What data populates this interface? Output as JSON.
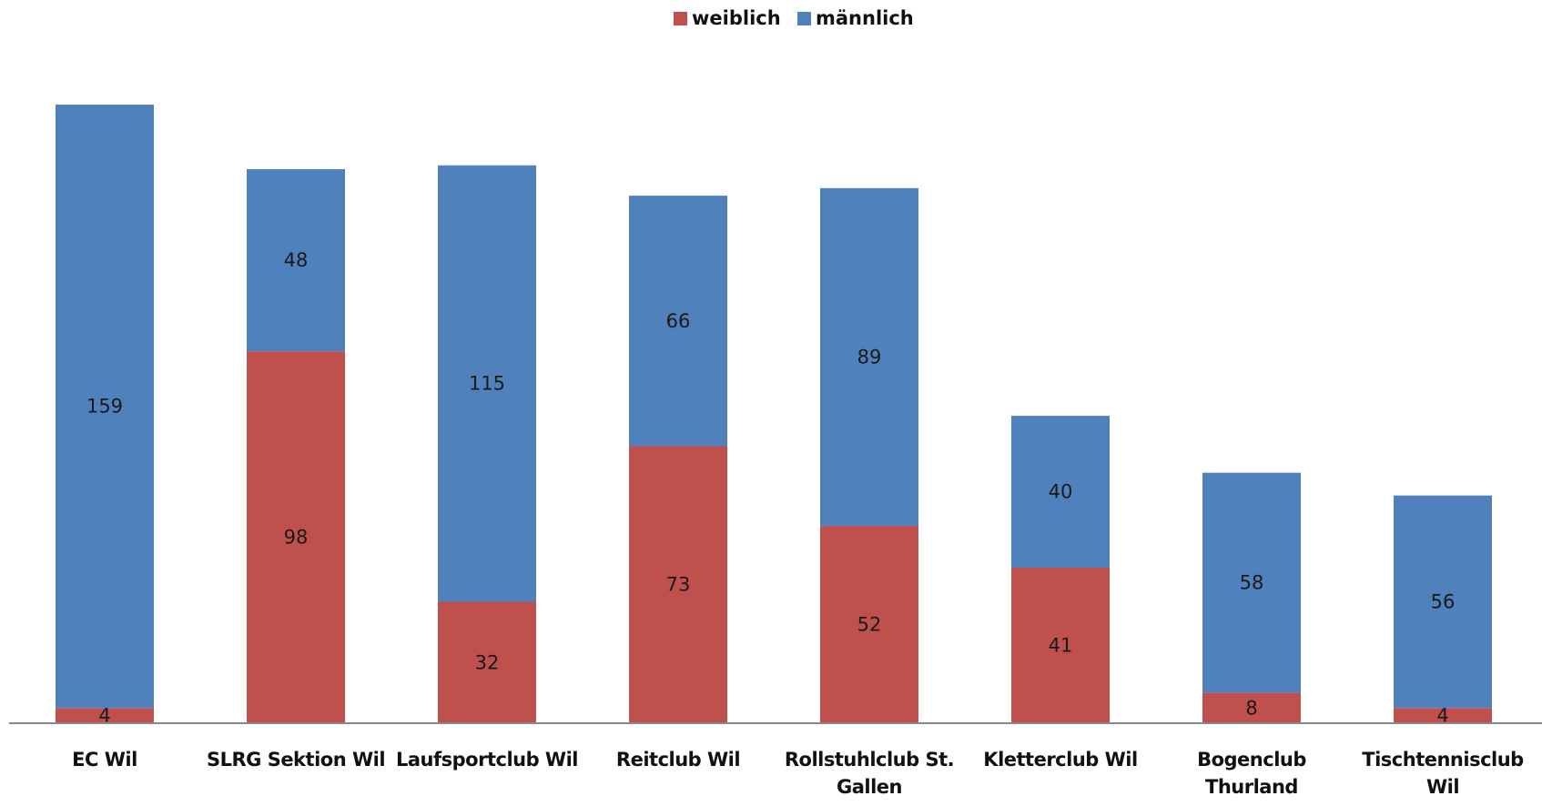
{
  "chart_data": {
    "type": "stacked_bar",
    "categories": [
      "EC Wil",
      "SLRG Sektion Wil",
      "Laufsportclub Wil",
      "Reitclub Wil",
      "Rollstuhlclub St. Gallen",
      "Kletterclub Wil",
      "Bogenclub Thurland",
      "Tischtennisclub Wil"
    ],
    "series": [
      {
        "name": "weiblich",
        "color": "#c0504d",
        "values": [
          4,
          98,
          32,
          73,
          52,
          41,
          8,
          4
        ]
      },
      {
        "name": "männlich",
        "color": "#4f81bd",
        "values": [
          159,
          48,
          115,
          66,
          89,
          40,
          58,
          56
        ]
      }
    ],
    "legend": "top"
  }
}
